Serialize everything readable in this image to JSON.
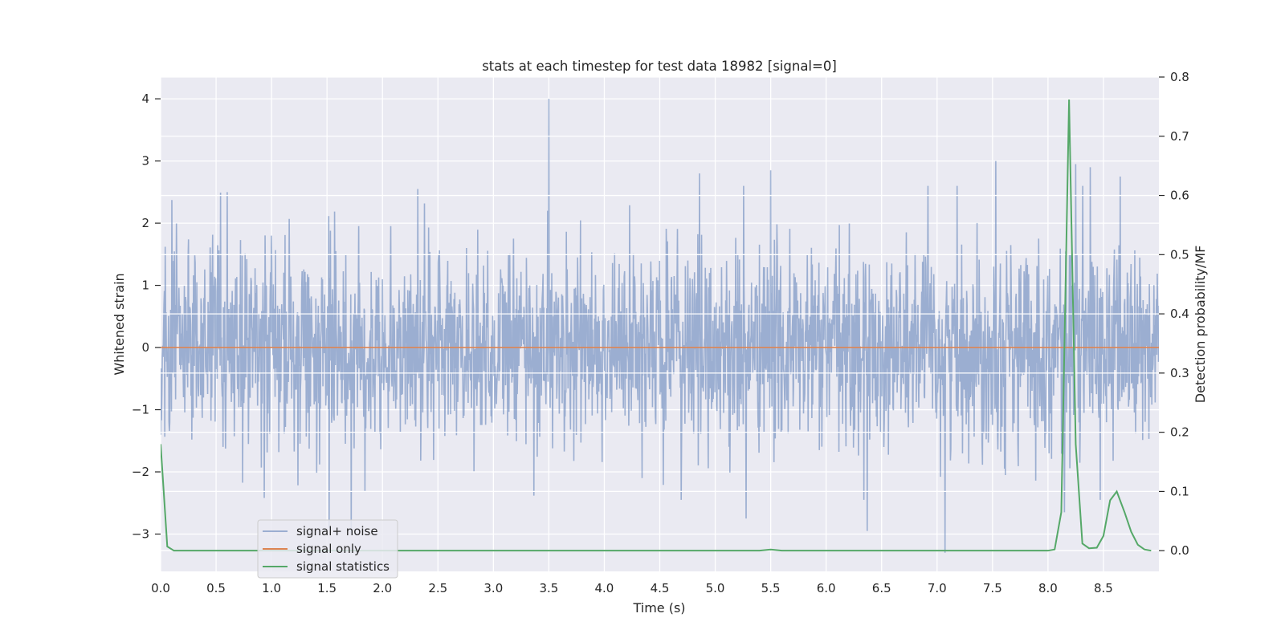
{
  "chart_data": {
    "type": "line",
    "title": "stats at each timestep for test data 18982 [signal=0]",
    "xlabel": "Time (s)",
    "ylabel_left": "Whitened strain",
    "ylabel_right": "Detection probability/MF",
    "xlim": [
      0.0,
      9.0
    ],
    "ylim_left": [
      -3.6,
      4.35
    ],
    "ylim_right": [
      -0.035,
      0.8
    ],
    "x_ticks": [
      0.0,
      0.5,
      1.0,
      1.5,
      2.0,
      2.5,
      3.0,
      3.5,
      4.0,
      4.5,
      5.0,
      5.5,
      6.0,
      6.5,
      7.0,
      7.5,
      8.0,
      8.5
    ],
    "x_tick_labels": [
      "0.0",
      "0.5",
      "1.0",
      "1.5",
      "2.0",
      "2.5",
      "3.0",
      "3.5",
      "4.0",
      "4.5",
      "5.0",
      "5.5",
      "6.0",
      "6.5",
      "7.0",
      "7.5",
      "8.0",
      "8.5"
    ],
    "y_left_ticks": [
      -3,
      -2,
      -1,
      0,
      1,
      2,
      3,
      4
    ],
    "y_left_tick_labels": [
      "−3",
      "−2",
      "−1",
      "0",
      "1",
      "2",
      "3",
      "4"
    ],
    "y_right_ticks": [
      0.0,
      0.1,
      0.2,
      0.3,
      0.4,
      0.5,
      0.6,
      0.7,
      0.8
    ],
    "y_right_tick_labels": [
      "0.0",
      "0.1",
      "0.2",
      "0.3",
      "0.4",
      "0.5",
      "0.6",
      "0.7",
      "0.8"
    ],
    "grid": true,
    "legend_position": "lower-left",
    "series": [
      {
        "name": "signal+ noise",
        "axis": "left",
        "color": "#4c72b0",
        "opacity": 0.5,
        "kind": "noise",
        "samples": 2400,
        "sigma": 0.8,
        "spikes": [
          {
            "x": 3.5,
            "y": 4.0
          },
          {
            "x": 1.52,
            "y": -2.9
          },
          {
            "x": 1.72,
            "y": -3.0
          },
          {
            "x": 7.07,
            "y": -3.3
          },
          {
            "x": 6.37,
            "y": -2.95
          },
          {
            "x": 5.28,
            "y": -2.75
          },
          {
            "x": 7.53,
            "y": 3.0
          },
          {
            "x": 8.25,
            "y": 2.95
          },
          {
            "x": 8.38,
            "y": 2.9
          },
          {
            "x": 4.86,
            "y": 2.8
          },
          {
            "x": 5.5,
            "y": 2.85
          },
          {
            "x": 8.65,
            "y": 2.75
          },
          {
            "x": 2.32,
            "y": 2.55
          },
          {
            "x": 0.6,
            "y": 2.5
          },
          {
            "x": 8.15,
            "y": -2.65
          }
        ]
      },
      {
        "name": "signal only",
        "axis": "left",
        "color": "#dd8452",
        "x": [
          0.0,
          9.0
        ],
        "y": [
          0.0,
          0.0
        ]
      },
      {
        "name": "signal statistics",
        "axis": "right",
        "color": "#55a868",
        "x": [
          0.0,
          0.06,
          0.12,
          0.2,
          1.0,
          2.0,
          3.0,
          4.0,
          5.0,
          5.4,
          5.5,
          5.6,
          6.0,
          7.0,
          8.0,
          8.06,
          8.12,
          8.19,
          8.25,
          8.31,
          8.37,
          8.44,
          8.5,
          8.56,
          8.62,
          8.69,
          8.75,
          8.81,
          8.87,
          8.93
        ],
        "y": [
          0.18,
          0.007,
          0.0,
          0.0,
          0.0,
          0.0,
          0.0,
          0.0,
          0.0,
          0.0,
          0.002,
          0.0,
          0.0,
          0.0,
          0.0,
          0.002,
          0.065,
          0.762,
          0.18,
          0.012,
          0.004,
          0.005,
          0.025,
          0.085,
          0.1,
          0.065,
          0.032,
          0.01,
          0.002,
          0.0
        ]
      }
    ]
  }
}
